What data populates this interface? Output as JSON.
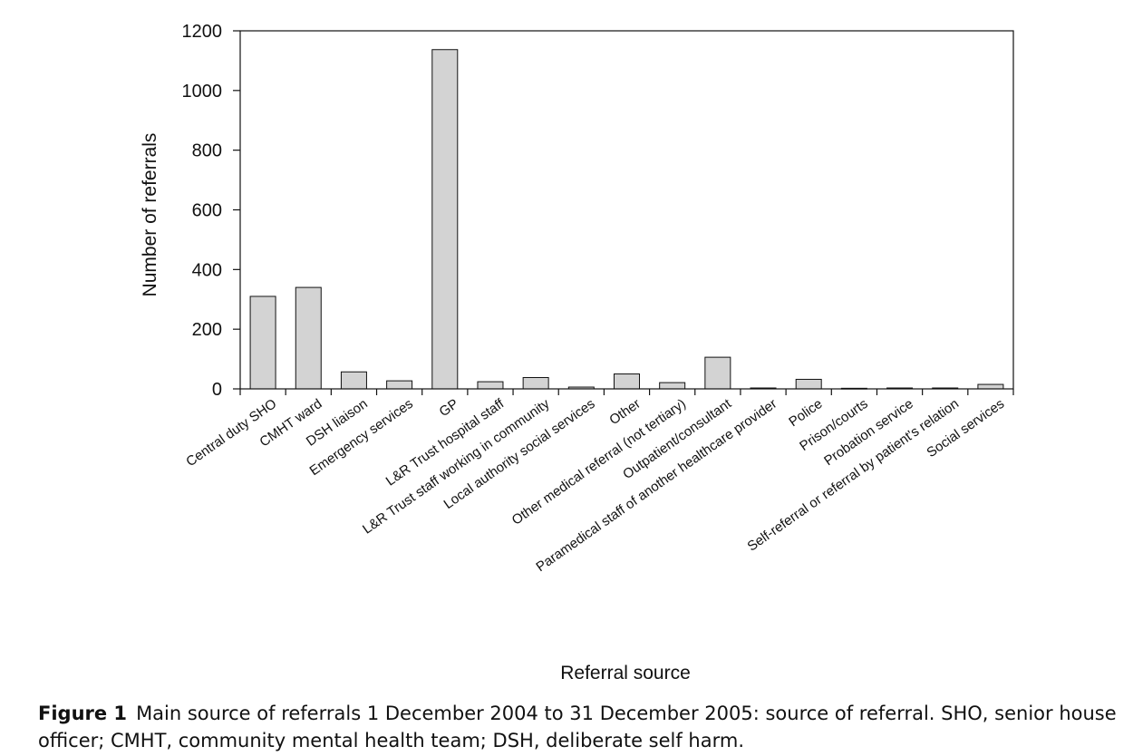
{
  "chart_data": {
    "type": "bar",
    "title": "",
    "xlabel": "Referral source",
    "ylabel": "Number of referrals",
    "ylim": [
      0,
      1200
    ],
    "yticks": [
      "0",
      "200",
      "400",
      "600",
      "800",
      "1000",
      "1200"
    ],
    "categories": [
      "Central duty SHO",
      "CMHT ward",
      "DSH liaison",
      "Emergency services",
      "GP",
      "L&R Trust hospital staff",
      "L&R Trust staff working in community",
      "Local authority social services",
      "Other",
      "Other medical referral (not tertiary)",
      "Outpatient/consultant",
      "Paramedical staff of another healthcare provider",
      "Police",
      "Prison/courts",
      "Probation service",
      "Self-referral or referral by patient's relation",
      "Social services"
    ],
    "values": [
      310,
      340,
      57,
      27,
      1137,
      24,
      38,
      6,
      50,
      21,
      106,
      3,
      32,
      2,
      3,
      3,
      15
    ],
    "bar_color": "#d3d3d3",
    "edge_color": "#111111"
  },
  "caption": {
    "label": "Figure 1",
    "text": "Main source of referrals 1 December 2004 to 31 December 2005: source of referral. SHO, senior house officer; CMHT, community mental health team; DSH, deliberate self harm."
  }
}
